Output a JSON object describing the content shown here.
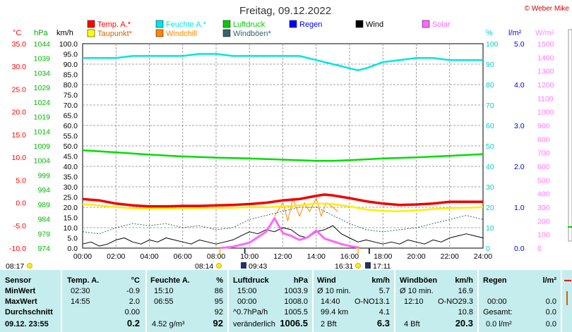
{
  "chart_data": {
    "type": "line",
    "title": "Freitag, 09.12.2022",
    "copyright": "© Weber Mike",
    "x_ticks": [
      "00:00",
      "02:00",
      "04:00",
      "06:00",
      "08:00",
      "10:00",
      "12:00",
      "14:00",
      "16:00",
      "18:00",
      "20:00",
      "22:00",
      "24:00"
    ],
    "legend": [
      {
        "label": "Temp. A.*",
        "color": "#ff0000"
      },
      {
        "label": "Feuchte A.*",
        "color": "#00e5e5"
      },
      {
        "label": "Luftdruck",
        "color": "#00cc00"
      },
      {
        "label": "Regen",
        "color": "#0000ff"
      },
      {
        "label": "Wind",
        "color": "#000000"
      },
      {
        "label": "Solar",
        "color": "#ff66ff"
      },
      {
        "label": "Taupunkt*",
        "color": "#ffff00"
      },
      {
        "label": "Windchill",
        "color": "#ff8800"
      },
      {
        "label": "Windböen*",
        "color": "#336666"
      }
    ],
    "axes": {
      "temp": {
        "unit": "°C",
        "ticks": [
          "35.0",
          "30.0",
          "25.0",
          "20.0",
          "15.0",
          "10.0",
          "5.0",
          "0.0",
          "-5.0",
          "-10.0"
        ],
        "range": [
          -10,
          35
        ]
      },
      "pressure": {
        "unit": "hPa",
        "ticks": [
          "1044",
          "1039",
          "1034",
          "1029",
          "1024",
          "1019",
          "1014",
          "1009",
          "1004",
          "999",
          "994",
          "989",
          "984",
          "979",
          "974"
        ],
        "range": [
          974,
          1044
        ]
      },
      "wind": {
        "unit": "km/h",
        "ticks": [
          "100.0",
          "95.0",
          "90.0",
          "85.0",
          "80.0",
          "75.0",
          "70.0",
          "65.0",
          "60.0",
          "55.0",
          "50.0",
          "45.0",
          "40.0",
          "35.0",
          "30.0",
          "25.0",
          "20.0",
          "15.0",
          "10.0",
          "5.0",
          "0.0"
        ],
        "range": [
          0,
          100
        ]
      },
      "humidity": {
        "unit": "%",
        "ticks": [
          "100",
          "90",
          "80",
          "70",
          "60",
          "50",
          "40",
          "30",
          "20",
          "10",
          "0"
        ],
        "range": [
          0,
          100
        ]
      },
      "rain": {
        "unit": "l/m²",
        "ticks": [
          "5.0",
          "4.0",
          "3.0",
          "2.0",
          "1.0",
          "0.0"
        ],
        "range": [
          0,
          5
        ]
      },
      "solar": {
        "unit": "W/m²",
        "ticks": [
          "1500",
          "1400",
          "1300",
          "1200",
          "1100",
          "1000",
          "900",
          "800",
          "700",
          "600",
          "500",
          "400",
          "300",
          "200",
          "100",
          "0"
        ],
        "range": [
          0,
          1500
        ]
      }
    },
    "series": [
      {
        "name": "Temp. A.*",
        "axis": "temp",
        "x": [
          0,
          1,
          2,
          3,
          4,
          5,
          6,
          7,
          8,
          9,
          10,
          11,
          12,
          13,
          14,
          14.5,
          15,
          16,
          17,
          18,
          19,
          20,
          21,
          22,
          23,
          24
        ],
        "y": [
          0.8,
          0.5,
          -0.2,
          -0.6,
          -0.8,
          -0.8,
          -0.7,
          -0.7,
          -0.6,
          -0.5,
          -0.3,
          0.0,
          0.5,
          0.8,
          1.5,
          1.8,
          1.6,
          1.0,
          0.3,
          -0.2,
          -0.5,
          -0.4,
          -0.2,
          0.2,
          0.2,
          0.2
        ]
      },
      {
        "name": "Taupunkt*",
        "axis": "temp",
        "x": [
          0,
          1,
          2,
          3,
          4,
          5,
          6,
          7,
          8,
          9,
          10,
          11,
          12,
          13,
          14,
          15,
          16,
          17,
          18,
          19,
          20,
          21,
          22,
          23,
          24
        ],
        "y": [
          -0.3,
          -0.6,
          -1.0,
          -1.2,
          -1.3,
          -1.3,
          -1.2,
          -1.2,
          -1.1,
          -1.1,
          -1.0,
          -1.0,
          -0.8,
          -0.6,
          -0.2,
          -0.3,
          -0.8,
          -1.5,
          -1.8,
          -1.9,
          -1.7,
          -1.4,
          -1.2,
          -1.1,
          -1.0
        ]
      },
      {
        "name": "Feuchte A.*",
        "axis": "humidity",
        "x": [
          0,
          1,
          2,
          3,
          4,
          5,
          6,
          7,
          8,
          9,
          10,
          11,
          12,
          13,
          14,
          15,
          16,
          16.5,
          17,
          18,
          19,
          20,
          21,
          22,
          23,
          24
        ],
        "y": [
          93,
          93,
          93,
          94,
          94,
          94,
          94,
          95,
          95,
          94,
          94,
          94,
          94,
          94,
          92,
          90,
          88,
          87,
          88,
          91,
          92,
          93,
          93,
          92,
          92,
          92
        ]
      },
      {
        "name": "Luftdruck",
        "axis": "pressure",
        "x": [
          0,
          2,
          4,
          6,
          8,
          10,
          12,
          14,
          15,
          16,
          18,
          20,
          22,
          24
        ],
        "y": [
          1007.5,
          1006.8,
          1006.0,
          1005.4,
          1005.0,
          1004.7,
          1004.3,
          1003.9,
          1003.9,
          1004.1,
          1004.7,
          1005.1,
          1005.6,
          1006.2
        ]
      },
      {
        "name": "Wind",
        "axis": "wind",
        "x": [
          0,
          0.5,
          1,
          1.5,
          2,
          2.5,
          3,
          3.5,
          4,
          4.5,
          5,
          5.5,
          6,
          6.5,
          7,
          7.5,
          8,
          8.5,
          9,
          9.5,
          10,
          10.5,
          11,
          11.5,
          12,
          12.5,
          13,
          13.5,
          14,
          14.5,
          15,
          15.5,
          16,
          16.5,
          17,
          17.5,
          18,
          18.5,
          19,
          19.5,
          20,
          20.5,
          21,
          21.5,
          22,
          22.5,
          23,
          23.5,
          24
        ],
        "y": [
          2,
          3,
          1,
          2,
          4,
          5,
          3,
          2,
          4,
          3,
          5,
          4,
          3,
          2,
          4,
          3,
          2,
          3,
          4,
          6,
          8,
          7,
          9,
          8,
          10,
          9,
          6,
          5,
          8,
          9,
          11,
          7,
          5,
          3,
          4,
          3,
          2,
          3,
          2,
          4,
          3,
          2,
          4,
          3,
          5,
          6,
          7,
          6,
          5
        ]
      },
      {
        "name": "Windböen*",
        "axis": "wind",
        "x": [
          0,
          1,
          2,
          3,
          4,
          5,
          6,
          7,
          8,
          9,
          10,
          11,
          12,
          13,
          14,
          15,
          16,
          17,
          18,
          19,
          20,
          21,
          22,
          23,
          24
        ],
        "y": [
          8,
          7,
          10,
          12,
          11,
          12,
          10,
          11,
          9,
          10,
          14,
          16,
          18,
          20,
          20,
          16,
          12,
          9,
          8,
          9,
          10,
          12,
          14,
          16,
          14
        ]
      },
      {
        "name": "Windchill",
        "axis": "temp",
        "x": [
          11.5,
          12,
          12.3,
          12.6,
          13,
          13.3,
          13.6,
          14,
          14.3,
          14.6,
          15,
          15.3
        ],
        "y": [
          -3,
          0,
          -4,
          1,
          -3,
          0,
          -2,
          1,
          -3,
          0,
          -1,
          -2
        ]
      },
      {
        "name": "Solar",
        "axis": "solar",
        "x": [
          8.2,
          9,
          10,
          10.5,
          11,
          11.5,
          12,
          12.5,
          13,
          13.5,
          14,
          14.5,
          15,
          15.5,
          16,
          16.5,
          16.6
        ],
        "y": [
          0,
          10,
          40,
          80,
          120,
          220,
          110,
          90,
          60,
          80,
          130,
          70,
          50,
          30,
          15,
          5,
          0
        ]
      }
    ],
    "sun_events": [
      {
        "label": "08:17",
        "kind": "sunrise"
      },
      {
        "label": "08:14",
        "kind": "sunrise"
      },
      {
        "label": "09:43",
        "kind": "moon"
      },
      {
        "label": "16:31",
        "kind": "sunset"
      },
      {
        "label": "17:11",
        "kind": "moon"
      }
    ]
  },
  "table": {
    "rows_labels": {
      "sensor": "Sensor",
      "min": "MinWert",
      "max": "MaxWert",
      "avg": "Durchschnitt",
      "current": "09.12. 23:55"
    },
    "temp": {
      "title": "Temp. A.",
      "unit": "°C",
      "min_time": "02:30",
      "min_val": "-0.9",
      "max_time": "14:55",
      "max_val": "2.0",
      "avg_val": "0.00",
      "current": "0.2"
    },
    "humidity": {
      "title": "Feuchte A.",
      "unit": "%",
      "min_time": "15:10",
      "min_val": "86",
      "max_time": "06:55",
      "max_val": "95",
      "avg_val": "92",
      "abs_label": "4.52 g/m³",
      "current": "92"
    },
    "pressure": {
      "title": "Luftdruck",
      "unit": "hPa",
      "min_time": "15:00",
      "min_val": "1003.9",
      "max_time": "00:00",
      "max_val": "1008.0",
      "trend_label": "^0.7hPa/h",
      "avg_val": "1005.5",
      "state": "veränderlich",
      "current": "1006.5"
    },
    "wind": {
      "title": "Wind",
      "unit": "km/h",
      "min_label": "Ø 10 min.",
      "min_val": "5.7",
      "max_time": "14:40",
      "max_dir": "O-NO",
      "max_val": "13.1",
      "dist": "99.4 km",
      "avg_val": "4.1",
      "bft": "2 Bft",
      "current": "6.3"
    },
    "gust": {
      "title": "Windböen",
      "unit": "km/h",
      "min_label": "Ø 10 min.",
      "min_val": "16.9",
      "max_time": "12:10",
      "max_dir": "O-NO",
      "max_val": "29.3",
      "avg_val": "10.8",
      "bft": "4 Bft",
      "current": "20.3"
    },
    "rain": {
      "title": "Regen",
      "unit": "l/m²",
      "max_time": "00:00",
      "max_val": "0.0",
      "total_label": "Gesamt:",
      "total_val": "0.0",
      "current": "0.0 l/m²",
      "current2": "0.0"
    }
  }
}
